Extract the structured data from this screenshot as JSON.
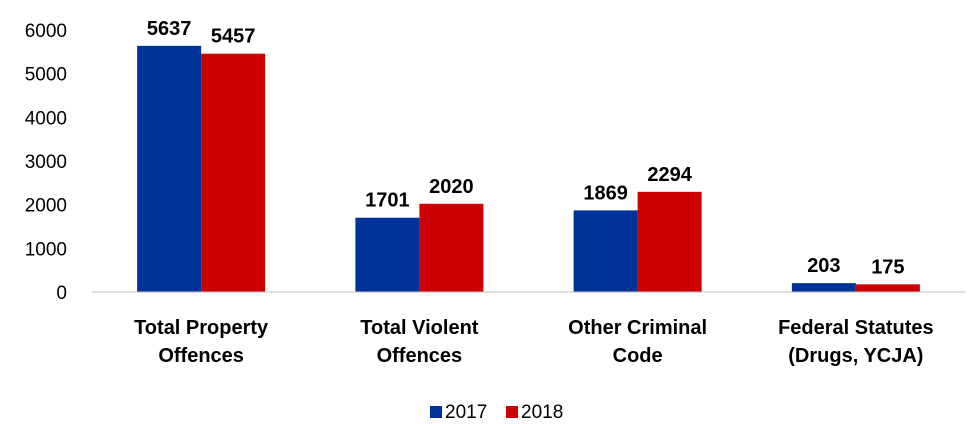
{
  "chart_data": {
    "type": "bar",
    "categories": [
      [
        "Total Property",
        "Offences"
      ],
      [
        "Total Violent",
        "Offences"
      ],
      [
        "Other Criminal",
        "Code"
      ],
      [
        "Federal Statutes",
        "(Drugs, YCJA)"
      ]
    ],
    "series": [
      {
        "name": "2017",
        "color": "#003399",
        "values": [
          5637,
          1701,
          1869,
          203
        ]
      },
      {
        "name": "2018",
        "color": "#cc0000",
        "values": [
          5457,
          2020,
          2294,
          175
        ]
      }
    ],
    "yticks": [
      "0",
      "1000",
      "2000",
      "3000",
      "4000",
      "5000",
      "6000"
    ],
    "ylim": [
      0,
      6000
    ],
    "grid": false,
    "legend_position": "bottom"
  }
}
